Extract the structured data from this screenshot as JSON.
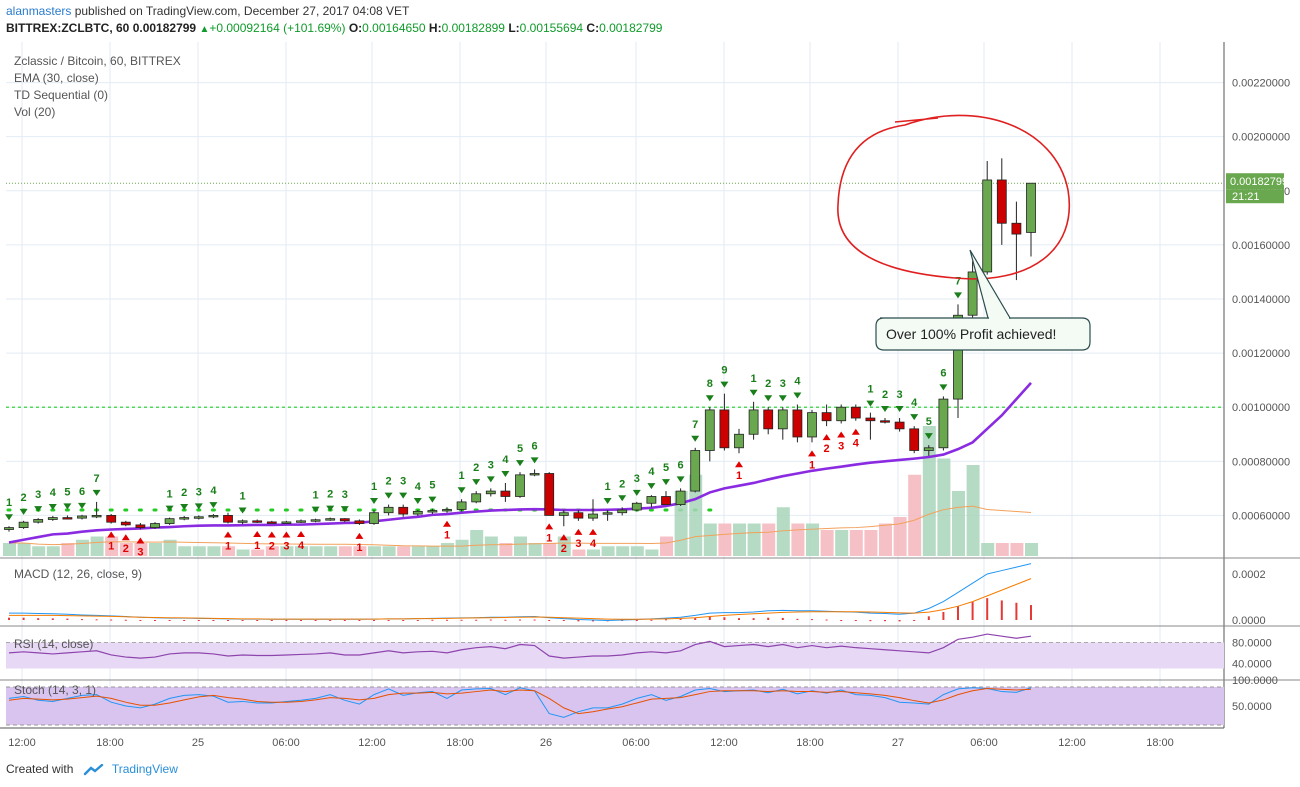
{
  "header": {
    "user": "alanmasters",
    "published_text": " published on TradingView.com, December 27, 2017 04:08 VET",
    "symbol": "BITTREX:ZCLBTC, 60",
    "price": "0.00182799",
    "change": "+0.00092164 (+101.69%)",
    "o_label": "O:",
    "o": "0.00164650",
    "h_label": "H:",
    "h": "0.00182899",
    "l_label": "L:",
    "l": "0.00155694",
    "c_label": "C:",
    "c": "0.00182799"
  },
  "legend": [
    "Zclassic / Bitcoin, 60, BITTREX",
    "EMA (30, close)",
    "TD Sequential (0)",
    "Vol (20)"
  ],
  "footer": {
    "created_with": "Created with",
    "brand": "TradingView"
  },
  "colors": {
    "up": "#6aa84f",
    "down": "#cc0000",
    "ema": "#8a2be2",
    "macd": "#2196f3",
    "signal": "#f57c00",
    "rsi": "#8e44ad",
    "stoch_k": "#2196f3",
    "stoch_d": "#e65100",
    "td_green": "#1a7f1a",
    "td_red": "#e00000",
    "vol_up": "#a8d5ba",
    "vol_down": "#f4b6bc",
    "circle": "#e02020"
  },
  "chart_data": {
    "type": "candlestick",
    "title": "Zclassic / Bitcoin, 60, BITTREX",
    "ylim": [
      0.00045,
      0.00235
    ],
    "y_ticks": [
      "0.00060000",
      "0.00080000",
      "0.00100000",
      "0.00120000",
      "0.00140000",
      "0.00160000",
      "0.00180000",
      "0.00200000",
      "0.00220000"
    ],
    "x_ticks": [
      "12:00",
      "18:00",
      "25",
      "06:00",
      "12:00",
      "18:00",
      "26",
      "06:00",
      "12:00",
      "18:00",
      "27",
      "06:00",
      "12:00",
      "18:00"
    ],
    "last_price_label": "0.00182799",
    "countdown": "21:21",
    "candles": [
      [
        0.000548,
        0.00056,
        0.00054,
        0.000555
      ],
      [
        0.000555,
        0.00058,
        0.00055,
        0.000575
      ],
      [
        0.000575,
        0.00059,
        0.00057,
        0.000585
      ],
      [
        0.000585,
        0.000598,
        0.00058,
        0.000592
      ],
      [
        0.000592,
        0.0006,
        0.000585,
        0.00059
      ],
      [
        0.00059,
        0.000602,
        0.000585,
        0.000598
      ],
      [
        0.000598,
        0.00065,
        0.00059,
        0.0006
      ],
      [
        0.0006,
        0.000605,
        0.00057,
        0.000575
      ],
      [
        0.000575,
        0.00058,
        0.00056,
        0.000565
      ],
      [
        0.000565,
        0.000572,
        0.000548,
        0.000555
      ],
      [
        0.000555,
        0.000575,
        0.00055,
        0.00057
      ],
      [
        0.00057,
        0.000592,
        0.000565,
        0.000588
      ],
      [
        0.000588,
        0.000598,
        0.000582,
        0.000592
      ],
      [
        0.000592,
        0.0006,
        0.000585,
        0.000595
      ],
      [
        0.000595,
        0.000605,
        0.00059,
        0.0006
      ],
      [
        0.0006,
        0.00061,
        0.00057,
        0.000575
      ],
      [
        0.000575,
        0.000585,
        0.000568,
        0.00058
      ],
      [
        0.00058,
        0.000585,
        0.000572,
        0.000576
      ],
      [
        0.000576,
        0.00058,
        0.00057,
        0.000575
      ],
      [
        0.000575,
        0.00058,
        0.00057,
        0.000576
      ],
      [
        0.000576,
        0.000585,
        0.000572,
        0.00058
      ],
      [
        0.00058,
        0.000588,
        0.000575,
        0.000584
      ],
      [
        0.000584,
        0.000592,
        0.00058,
        0.000588
      ],
      [
        0.000588,
        0.00059,
        0.000575,
        0.00058
      ],
      [
        0.00058,
        0.000585,
        0.000565,
        0.00057
      ],
      [
        0.00057,
        0.00062,
        0.000565,
        0.00061
      ],
      [
        0.00061,
        0.00064,
        0.0006,
        0.00063
      ],
      [
        0.00063,
        0.00064,
        0.000595,
        0.000605
      ],
      [
        0.000605,
        0.00062,
        0.000598,
        0.000615
      ],
      [
        0.000615,
        0.000625,
        0.000605,
        0.000618
      ],
      [
        0.000618,
        0.00063,
        0.00061,
        0.000622
      ],
      [
        0.000622,
        0.00066,
        0.000615,
        0.00065
      ],
      [
        0.00065,
        0.00069,
        0.000645,
        0.00068
      ],
      [
        0.00068,
        0.0007,
        0.00067,
        0.00069
      ],
      [
        0.00069,
        0.00072,
        0.00065,
        0.00067
      ],
      [
        0.00067,
        0.00076,
        0.000665,
        0.00075
      ],
      [
        0.00075,
        0.00077,
        0.000745,
        0.000755
      ],
      [
        0.000755,
        0.00076,
        0.0006,
        0.0006
      ],
      [
        0.0006,
        0.00062,
        0.00056,
        0.00061
      ],
      [
        0.00061,
        0.00062,
        0.00058,
        0.00059
      ],
      [
        0.00059,
        0.00066,
        0.00058,
        0.000605
      ],
      [
        0.000605,
        0.00062,
        0.00058,
        0.00061
      ],
      [
        0.00061,
        0.00063,
        0.0006,
        0.00062
      ],
      [
        0.00062,
        0.00065,
        0.000615,
        0.000645
      ],
      [
        0.000645,
        0.000675,
        0.00063,
        0.00067
      ],
      [
        0.00067,
        0.00069,
        0.00064,
        0.00064
      ],
      [
        0.00064,
        0.0007,
        0.000635,
        0.00069
      ],
      [
        0.00069,
        0.00085,
        0.000685,
        0.00084
      ],
      [
        0.00084,
        0.001,
        0.0008,
        0.00099
      ],
      [
        0.00099,
        0.00105,
        0.00084,
        0.00085
      ],
      [
        0.00085,
        0.00092,
        0.00083,
        0.0009
      ],
      [
        0.0009,
        0.00102,
        0.00088,
        0.00099
      ],
      [
        0.00099,
        0.001,
        0.0009,
        0.00092
      ],
      [
        0.00092,
        0.001,
        0.00088,
        0.00099
      ],
      [
        0.00099,
        0.00101,
        0.00087,
        0.00089
      ],
      [
        0.00089,
        0.00099,
        0.00087,
        0.00098
      ],
      [
        0.00098,
        0.00101,
        0.00093,
        0.00095
      ],
      [
        0.00095,
        0.00101,
        0.00094,
        0.001
      ],
      [
        0.001,
        0.00101,
        0.00095,
        0.00096
      ],
      [
        0.00096,
        0.00098,
        0.00088,
        0.00095
      ],
      [
        0.00095,
        0.00096,
        0.00094,
        0.000945
      ],
      [
        0.000945,
        0.00096,
        0.00091,
        0.00092
      ],
      [
        0.00092,
        0.00093,
        0.00083,
        0.00084
      ],
      [
        0.00084,
        0.00086,
        0.00082,
        0.00085
      ],
      [
        0.00085,
        0.00104,
        0.00084,
        0.00103
      ],
      [
        0.00103,
        0.00138,
        0.00096,
        0.00134
      ],
      [
        0.00134,
        0.00154,
        0.0013,
        0.0015
      ],
      [
        0.0015,
        0.00191,
        0.00149,
        0.00184
      ],
      [
        0.00184,
        0.00192,
        0.0016,
        0.00168
      ],
      [
        0.00168,
        0.00176,
        0.00147,
        0.00164
      ],
      [
        0.001646,
        0.001829,
        0.001557,
        0.001828
      ]
    ],
    "ema30": [
      0.0005,
      0.00051,
      0.00052,
      0.00053,
      0.000533,
      0.00054,
      0.000545,
      0.000548,
      0.00055,
      0.000552,
      0.000555,
      0.000557,
      0.00056,
      0.000562,
      0.000563,
      0.000563,
      0.000564,
      0.000565,
      0.000565,
      0.000566,
      0.000566,
      0.000568,
      0.00057,
      0.000572,
      0.000573,
      0.000578,
      0.000584,
      0.00059,
      0.000595,
      0.000602,
      0.000605,
      0.00061,
      0.000614,
      0.000618,
      0.00062,
      0.000622,
      0.000623,
      0.000622,
      0.00062,
      0.00062,
      0.00062,
      0.000621,
      0.000622,
      0.000625,
      0.000628,
      0.000635,
      0.000645,
      0.00066,
      0.000685,
      0.0007,
      0.00071,
      0.00072,
      0.000733,
      0.000745,
      0.000755,
      0.000765,
      0.000773,
      0.00078,
      0.000788,
      0.000795,
      0.0008,
      0.000805,
      0.00081,
      0.000816,
      0.000825,
      0.000845,
      0.00087,
      0.00092,
      0.00097,
      0.00103,
      0.00109
    ],
    "td_green": [
      {
        "i": 0,
        "t": "1"
      },
      {
        "i": 1,
        "t": "2"
      },
      {
        "i": 2,
        "t": "3"
      },
      {
        "i": 3,
        "t": "4"
      },
      {
        "i": 4,
        "t": "5"
      },
      {
        "i": 5,
        "t": "6"
      },
      {
        "i": 6,
        "t": "7"
      },
      {
        "i": 11,
        "t": "1"
      },
      {
        "i": 12,
        "t": "2"
      },
      {
        "i": 13,
        "t": "3"
      },
      {
        "i": 14,
        "t": "4"
      },
      {
        "i": 16,
        "t": "1"
      },
      {
        "i": 21,
        "t": "1"
      },
      {
        "i": 22,
        "t": "2"
      },
      {
        "i": 23,
        "t": "3"
      },
      {
        "i": 25,
        "t": "1"
      },
      {
        "i": 26,
        "t": "2"
      },
      {
        "i": 27,
        "t": "3"
      },
      {
        "i": 28,
        "t": "4"
      },
      {
        "i": 29,
        "t": "5"
      },
      {
        "i": 31,
        "t": "1"
      },
      {
        "i": 32,
        "t": "2"
      },
      {
        "i": 33,
        "t": "3"
      },
      {
        "i": 34,
        "t": "4"
      },
      {
        "i": 35,
        "t": "5"
      },
      {
        "i": 36,
        "t": "6"
      },
      {
        "i": 41,
        "t": "1"
      },
      {
        "i": 42,
        "t": "2"
      },
      {
        "i": 43,
        "t": "3"
      },
      {
        "i": 44,
        "t": "4"
      },
      {
        "i": 45,
        "t": "5"
      },
      {
        "i": 46,
        "t": "6"
      },
      {
        "i": 47,
        "t": "7"
      },
      {
        "i": 48,
        "t": "8"
      },
      {
        "i": 49,
        "t": "9"
      },
      {
        "i": 51,
        "t": "1"
      },
      {
        "i": 52,
        "t": "2"
      },
      {
        "i": 53,
        "t": "3"
      },
      {
        "i": 54,
        "t": "4"
      },
      {
        "i": 59,
        "t": "1"
      },
      {
        "i": 60,
        "t": "2"
      },
      {
        "i": 61,
        "t": "3"
      },
      {
        "i": 62,
        "t": "4"
      },
      {
        "i": 63,
        "t": "5"
      },
      {
        "i": 64,
        "t": "6"
      },
      {
        "i": 65,
        "t": "7"
      }
    ],
    "td_red": [
      {
        "i": 7,
        "t": "1"
      },
      {
        "i": 8,
        "t": "2"
      },
      {
        "i": 9,
        "t": "3"
      },
      {
        "i": 15,
        "t": "1"
      },
      {
        "i": 17,
        "t": "1"
      },
      {
        "i": 18,
        "t": "2"
      },
      {
        "i": 19,
        "t": "3"
      },
      {
        "i": 20,
        "t": "4"
      },
      {
        "i": 24,
        "t": "1"
      },
      {
        "i": 30,
        "t": "1"
      },
      {
        "i": 37,
        "t": "1"
      },
      {
        "i": 38,
        "t": "2"
      },
      {
        "i": 39,
        "t": "3"
      },
      {
        "i": 40,
        "t": "4"
      },
      {
        "i": 50,
        "t": "1"
      },
      {
        "i": 55,
        "t": "1"
      },
      {
        "i": 56,
        "t": "2"
      },
      {
        "i": 57,
        "t": "3"
      },
      {
        "i": 58,
        "t": "4"
      }
    ],
    "volume": [
      4,
      4,
      3,
      3,
      4,
      5,
      6,
      6,
      4,
      4,
      4,
      5,
      3,
      3,
      3,
      3,
      2,
      2,
      3,
      3,
      3,
      3,
      3,
      3,
      3,
      3,
      3,
      3,
      3,
      3,
      4,
      5,
      8,
      6,
      4,
      6,
      4,
      4,
      6,
      2,
      2,
      3,
      3,
      3,
      2,
      6,
      20,
      25,
      10,
      10,
      10,
      10,
      10,
      15,
      10,
      10,
      8,
      8,
      8,
      8,
      10,
      12,
      25,
      40,
      30,
      20,
      28,
      4,
      4,
      4,
      4
    ],
    "annotation": "Over 100% Profit achieved!",
    "macd_ticks": [
      "0.0002",
      "0.0000"
    ],
    "rsi_ticks": [
      "80.0000",
      "40.0000"
    ],
    "stoch_ticks": [
      "100.0000",
      "50.0000"
    ],
    "indicator_labels": {
      "macd": "MACD (12, 26, close, 9)",
      "rsi": "RSI (14, close)",
      "stoch": "Stoch (14, 3, 1)"
    },
    "macd": [
      3e-05,
      3e-05,
      2.8e-05,
      2.7e-05,
      2.5e-05,
      2.2e-05,
      2e-05,
      1.8e-05,
      1.5e-05,
      1.2e-05,
      1e-05,
      8e-06,
      8e-06,
      7e-06,
      6e-06,
      5e-06,
      4e-06,
      4e-06,
      3e-06,
      3e-06,
      3e-06,
      3e-06,
      3e-06,
      3e-06,
      3e-06,
      4e-06,
      5e-06,
      5e-06,
      6e-06,
      7e-06,
      8e-06,
      9e-06,
      1e-05,
      1.2e-05,
      1.2e-05,
      1.4e-05,
      1.5e-05,
      1e-05,
      6e-06,
      2e-06,
      0.0,
      -2e-06,
      0.0,
      2e-06,
      5e-06,
      8e-06,
      1.2e-05,
      2e-05,
      3e-05,
      3.2e-05,
      3.2e-05,
      3.5e-05,
      4e-05,
      4.2e-05,
      4e-05,
      4e-05,
      3.8e-05,
      3.6e-05,
      3.4e-05,
      3e-05,
      2.8e-05,
      2.5e-05,
      3e-05,
      5e-05,
      8e-05,
      0.00012,
      0.00016,
      0.0002,
      0.000215,
      0.00023,
      0.000245
    ],
    "macd_signal": [
      2e-05,
      2e-05,
      2e-05,
      2e-05,
      1.9e-05,
      1.8e-05,
      1.7e-05,
      1.6e-05,
      1.4e-05,
      1.2e-05,
      1.1e-05,
      1e-05,
      9e-06,
      8e-06,
      7e-06,
      6e-06,
      5e-06,
      5e-06,
      4e-06,
      4e-06,
      4e-06,
      4e-06,
      4e-06,
      4e-06,
      4e-06,
      4e-06,
      5e-06,
      5e-06,
      6e-06,
      6e-06,
      7e-06,
      8e-06,
      9e-06,
      1e-05,
      1.1e-05,
      1.2e-05,
      1.3e-05,
      1.2e-05,
      1e-05,
      8e-06,
      6e-06,
      4e-06,
      3e-06,
      3e-06,
      4e-06,
      5e-06,
      7e-06,
      1e-05,
      1.5e-05,
      2e-05,
      2.4e-05,
      2.7e-05,
      3e-05,
      3.3e-05,
      3.5e-05,
      3.6e-05,
      3.6e-05,
      3.6e-05,
      3.6e-05,
      3.5e-05,
      3.3e-05,
      3.1e-05,
      3e-05,
      3.4e-05,
      4.5e-05,
      6e-05,
      8e-05,
      0.000105,
      0.00013,
      0.000155,
      0.00018
    ],
    "rsi": [
      60,
      62,
      60,
      58,
      60,
      62,
      64,
      56,
      52,
      50,
      52,
      58,
      60,
      60,
      58,
      54,
      56,
      55,
      55,
      56,
      57,
      58,
      60,
      56,
      56,
      60,
      64,
      60,
      62,
      63,
      60,
      66,
      70,
      72,
      68,
      76,
      74,
      54,
      50,
      52,
      54,
      54,
      56,
      60,
      62,
      60,
      64,
      76,
      82,
      72,
      74,
      76,
      72,
      76,
      70,
      74,
      70,
      73,
      70,
      68,
      66,
      64,
      62,
      60,
      70,
      86,
      90,
      96,
      92,
      88,
      92
    ],
    "stoch_k": [
      70,
      75,
      65,
      62,
      70,
      78,
      80,
      60,
      50,
      45,
      55,
      70,
      78,
      80,
      76,
      60,
      62,
      58,
      58,
      62,
      65,
      70,
      80,
      65,
      55,
      80,
      95,
      78,
      85,
      88,
      70,
      92,
      95,
      96,
      80,
      98,
      90,
      30,
      20,
      35,
      45,
      45,
      55,
      70,
      80,
      65,
      75,
      92,
      96,
      88,
      90,
      92,
      85,
      94,
      82,
      90,
      84,
      92,
      80,
      78,
      72,
      60,
      58,
      55,
      80,
      95,
      98,
      96,
      88,
      86,
      98
    ],
    "stoch_d": [
      65,
      70,
      68,
      66,
      68,
      72,
      76,
      70,
      60,
      52,
      52,
      58,
      66,
      74,
      78,
      72,
      68,
      62,
      60,
      60,
      62,
      66,
      72,
      70,
      66,
      70,
      80,
      84,
      84,
      86,
      82,
      84,
      88,
      92,
      88,
      92,
      90,
      70,
      45,
      30,
      35,
      42,
      48,
      58,
      68,
      70,
      72,
      80,
      88,
      90,
      90,
      90,
      88,
      90,
      88,
      88,
      86,
      88,
      85,
      82,
      78,
      72,
      64,
      58,
      66,
      80,
      90,
      96,
      94,
      92,
      94
    ]
  }
}
